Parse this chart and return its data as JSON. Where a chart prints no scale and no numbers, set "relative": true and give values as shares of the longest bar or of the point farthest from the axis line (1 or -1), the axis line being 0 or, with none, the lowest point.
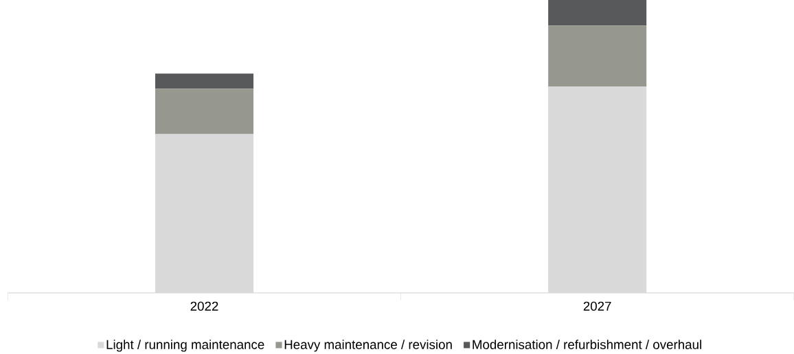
{
  "chart_data": {
    "type": "bar",
    "stacked": true,
    "relative": true,
    "legend": "bottom",
    "categories": [
      "2022",
      "2027"
    ],
    "series": [
      {
        "name": "Light / running maintenance",
        "color": "#d9d9d9",
        "values": [
          0.542,
          0.704
        ]
      },
      {
        "name": "Heavy maintenance / revision",
        "color": "#96988f",
        "values": [
          0.155,
          0.209
        ]
      },
      {
        "name": "Modernisation / refurbishment / overhaul",
        "color": "#58595b",
        "values": [
          0.052,
          0.087
        ]
      }
    ]
  }
}
